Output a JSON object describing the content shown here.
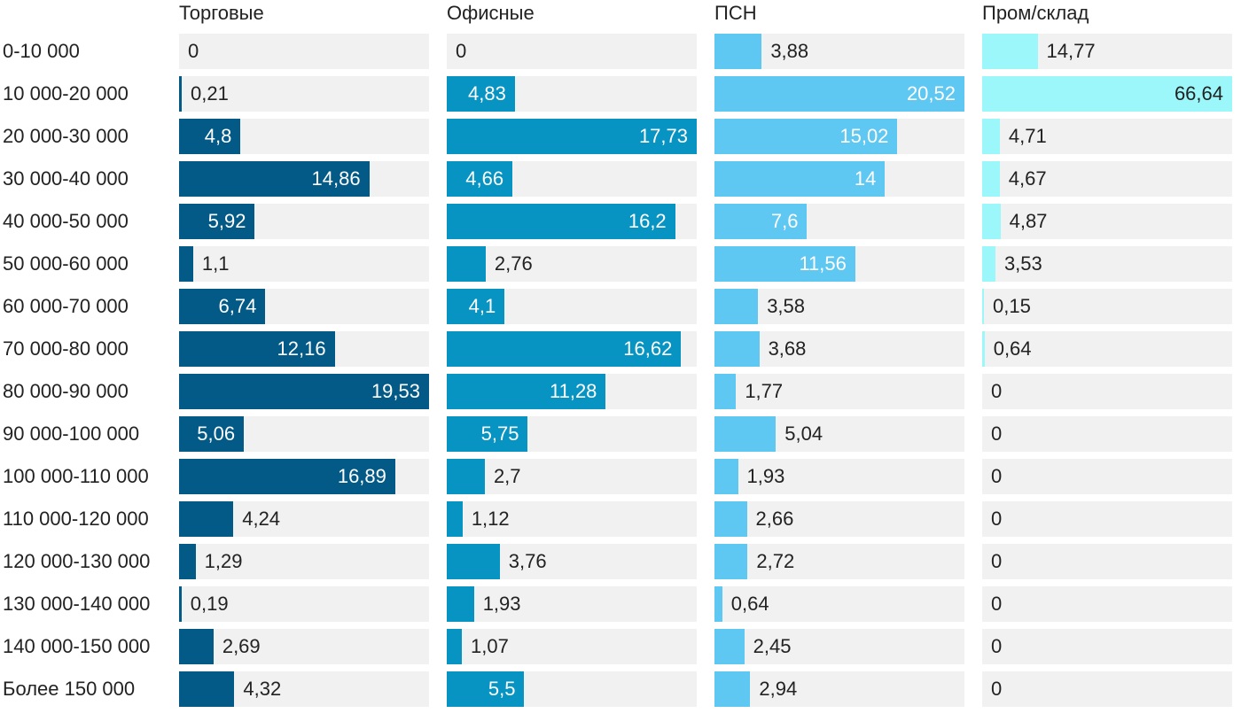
{
  "chart_data": {
    "type": "bar",
    "orientation": "horizontal",
    "layout": "small-multiples",
    "categories": [
      "0-10 000",
      "10 000-20 000",
      "20 000-30 000",
      "30 000-40 000",
      "40 000-50 000",
      "50 000-60 000",
      "60 000-70 000",
      "70 000-80 000",
      "80 000-90 000",
      "90 000-100 000",
      "100 000-110 000",
      "110 000-120 000",
      "120 000-130 000",
      "130 000-140 000",
      "140 000-150 000",
      "Более 150 000"
    ],
    "series": [
      {
        "name": "Торговые",
        "color": "#045a86",
        "values": [
          0,
          0.21,
          4.8,
          14.86,
          5.92,
          1.1,
          6.74,
          12.16,
          19.53,
          5.06,
          16.89,
          4.24,
          1.29,
          0.19,
          2.69,
          4.32
        ],
        "labels": [
          "0",
          "0,21",
          "4,8",
          "14,86",
          "5,92",
          "1,1",
          "6,74",
          "12,16",
          "19,53",
          "5,06",
          "16,89",
          "4,24",
          "1,29",
          "0,19",
          "2,69",
          "4,32"
        ]
      },
      {
        "name": "Офисные",
        "color": "#0794c2",
        "values": [
          0,
          4.83,
          17.73,
          4.66,
          16.2,
          2.76,
          4.1,
          16.62,
          11.28,
          5.75,
          2.7,
          1.12,
          3.76,
          1.93,
          1.07,
          5.5
        ],
        "labels": [
          "0",
          "4,83",
          "17,73",
          "4,66",
          "16,2",
          "2,76",
          "4,1",
          "16,62",
          "11,28",
          "5,75",
          "2,7",
          "1,12",
          "3,76",
          "1,93",
          "1,07",
          "5,5"
        ]
      },
      {
        "name": "ПСН",
        "color": "#5ec7f2",
        "values": [
          3.88,
          20.52,
          15.02,
          14,
          7.6,
          11.56,
          3.58,
          3.68,
          1.77,
          5.04,
          1.93,
          2.66,
          2.72,
          0.64,
          2.45,
          2.94
        ],
        "labels": [
          "3,88",
          "20,52",
          "15,02",
          "14",
          "7,6",
          "11,56",
          "3,58",
          "3,68",
          "1,77",
          "5,04",
          "1,93",
          "2,66",
          "2,72",
          "0,64",
          "2,45",
          "2,94"
        ]
      },
      {
        "name": "Пром/склад",
        "color": "#9cf7fb",
        "values": [
          14.77,
          66.64,
          4.71,
          4.67,
          4.87,
          3.53,
          0.15,
          0.64,
          0,
          0,
          0,
          0,
          0,
          0,
          0,
          0
        ],
        "labels": [
          "14,77",
          "66,64",
          "4,71",
          "4,67",
          "4,87",
          "3,53",
          "0,15",
          "0,64",
          "0",
          "0",
          "0",
          "0",
          "0",
          "0",
          "0",
          "0"
        ]
      }
    ],
    "track_color": "#f1f1f1",
    "label_inside_color": "#ffffff",
    "label_outside_color": "#222222",
    "grid": false,
    "legend": "none"
  }
}
